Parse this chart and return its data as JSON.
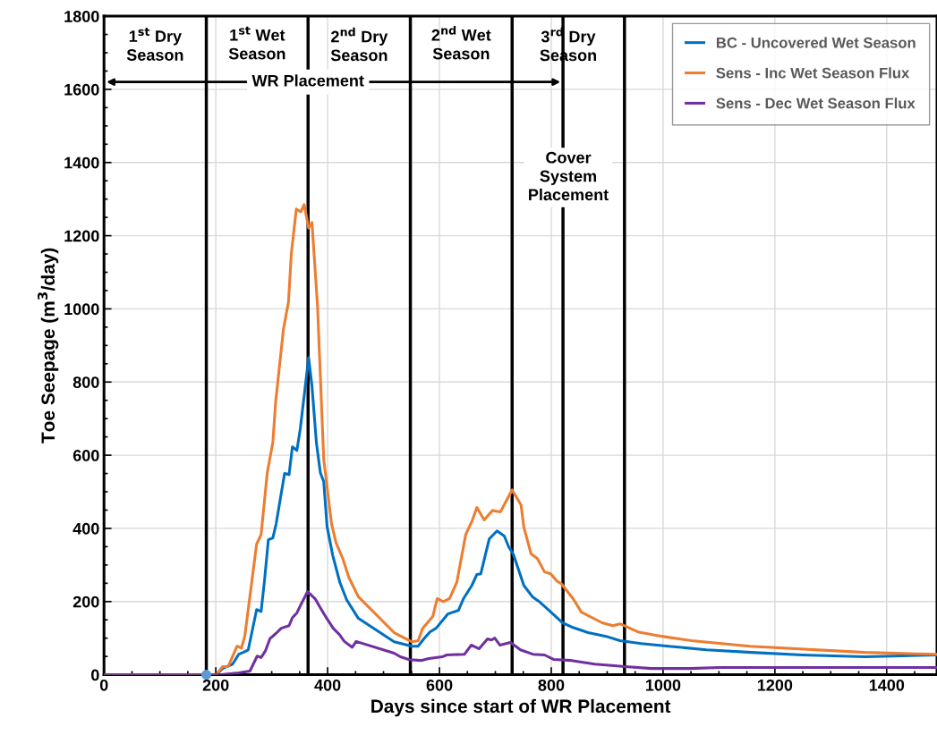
{
  "chart_data": {
    "type": "line",
    "xlabel": "Days since start of WR Placement",
    "ylabel": "Toe Seepage (m$^{3}$/day)",
    "xlim": [
      0,
      1490
    ],
    "ylim": [
      0,
      1800
    ],
    "xticks": [
      0,
      200,
      400,
      600,
      800,
      1000,
      1200,
      1400
    ],
    "yticks": [
      0,
      200,
      400,
      600,
      800,
      1000,
      1200,
      1400,
      1600,
      1800
    ],
    "grid": true,
    "legend": "top right",
    "marker": "none",
    "line_style": "solid",
    "series": [
      {
        "name": "BC - Uncovered Wet Season",
        "color": "#0070c0",
        "x": [
          0,
          201,
          212,
          230,
          241,
          249,
          258,
          273,
          281,
          287,
          294,
          302,
          308,
          323,
          331,
          337,
          345,
          351,
          358,
          366,
          372,
          380,
          387,
          393,
          399,
          409,
          422,
          434,
          455,
          519,
          551,
          562,
          572,
          583,
          594,
          615,
          634,
          643,
          658,
          667,
          674,
          689,
          703,
          716,
          724,
          732,
          751,
          767,
          780,
          796,
          820,
          839,
          866,
          898,
          923,
          961,
          1010,
          1078,
          1158,
          1249,
          1361,
          1489
        ],
        "values": [
          0,
          0,
          17,
          29,
          56,
          61,
          68,
          178,
          173,
          256,
          369,
          374,
          413,
          550,
          547,
          623,
          613,
          671,
          762,
          867,
          789,
          633,
          552,
          528,
          405,
          327,
          252,
          205,
          154,
          90,
          78,
          78,
          98,
          117,
          127,
          166,
          176,
          208,
          244,
          274,
          276,
          371,
          393,
          379,
          349,
          330,
          244,
          212,
          198,
          176,
          142,
          129,
          115,
          105,
          93,
          85,
          78,
          68,
          61,
          54,
          49,
          54
        ]
      },
      {
        "name": "Sens - Inc Wet Season Flux",
        "color": "#ed7d31",
        "x": [
          0,
          201,
          212,
          222,
          238,
          246,
          252,
          273,
          281,
          292,
          302,
          307,
          321,
          330,
          335,
          344,
          352,
          358,
          366,
          372,
          382,
          393,
          407,
          415,
          427,
          438,
          455,
          519,
          551,
          562,
          570,
          588,
          596,
          607,
          618,
          631,
          647,
          659,
          667,
          680,
          695,
          709,
          730,
          746,
          751,
          764,
          775,
          788,
          799,
          810,
          818,
          839,
          854,
          891,
          910,
          923,
          955,
          998,
          1051,
          1105,
          1155,
          1361,
          1489
        ],
        "values": [
          0,
          0,
          22,
          22,
          78,
          73,
          107,
          357,
          383,
          552,
          635,
          745,
          945,
          1019,
          1150,
          1273,
          1265,
          1285,
          1221,
          1236,
          1006,
          589,
          413,
          361,
          318,
          266,
          213,
          115,
          90,
          93,
          127,
          159,
          208,
          200,
          208,
          252,
          383,
          423,
          457,
          423,
          449,
          445,
          505,
          464,
          403,
          330,
          318,
          281,
          276,
          256,
          249,
          208,
          171,
          142,
          134,
          139,
          117,
          105,
          93,
          85,
          78,
          61,
          56
        ]
      },
      {
        "name": "Sens - Dec Wet Season Flux",
        "color": "#7030a0",
        "x": [
          0,
          209,
          241,
          261,
          274,
          281,
          289,
          297,
          307,
          317,
          331,
          337,
          345,
          352,
          364,
          378,
          387,
          398,
          410,
          421,
          430,
          444,
          451,
          519,
          530,
          546,
          567,
          581,
          605,
          613,
          645,
          657,
          671,
          686,
          693,
          699,
          708,
          727,
          745,
          767,
          788,
          804,
          836,
          878,
          932,
          979,
          1048,
          1102,
          1153,
          1489
        ],
        "values": [
          0,
          0,
          5,
          10,
          51,
          47,
          66,
          99,
          112,
          127,
          134,
          156,
          169,
          191,
          227,
          207,
          183,
          155,
          127,
          110,
          91,
          75,
          91,
          59,
          49,
          41,
          39,
          44,
          49,
          54,
          56,
          81,
          71,
          98,
          95,
          100,
          81,
          88,
          68,
          56,
          54,
          42,
          39,
          29,
          22,
          17,
          17,
          20,
          20,
          20
        ]
      },
      {
        "type": "scatter",
        "marker": "circle",
        "color": "#5b9bd5",
        "x": [
          183
        ],
        "values": [
          0
        ]
      }
    ],
    "ref_lines": [
      {
        "axis": "x",
        "value": 183,
        "color": "#000000"
      },
      {
        "axis": "x",
        "value": 365,
        "color": "#000000"
      },
      {
        "axis": "x",
        "value": 548,
        "color": "#000000"
      },
      {
        "axis": "x",
        "value": 730,
        "color": "#000000"
      },
      {
        "axis": "x",
        "value": 821,
        "color": "#000000"
      },
      {
        "axis": "x",
        "value": 931,
        "color": "#000000"
      }
    ],
    "annotations": [
      "1$^{st}$ Dry\nSeason",
      "1$^{st}$ Wet\nSeason",
      "2$^{nd}$ Dry\nSeason",
      "2$^{nd}$ Wet\nSeason",
      "3$^{rd}$ Dry\nSeason",
      "WR Placement",
      "Cover\nSystem\nPlacement"
    ]
  }
}
